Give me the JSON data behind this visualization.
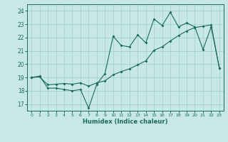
{
  "xlabel": "Humidex (Indice chaleur)",
  "background_color": "#c8e8e8",
  "line_color": "#1a6b5a",
  "grid_color": "#9ecece",
  "xlim": [
    -0.5,
    23.5
  ],
  "ylim": [
    16.5,
    24.5
  ],
  "yticks": [
    17,
    18,
    19,
    20,
    21,
    22,
    23,
    24
  ],
  "xticks": [
    0,
    1,
    2,
    3,
    4,
    5,
    6,
    7,
    8,
    9,
    10,
    11,
    12,
    13,
    14,
    15,
    16,
    17,
    18,
    19,
    20,
    21,
    22,
    23
  ],
  "line1_x": [
    0,
    1,
    2,
    3,
    4,
    5,
    6,
    7,
    8,
    9,
    10,
    11,
    12,
    13,
    14,
    15,
    16,
    17,
    18,
    19,
    20,
    21,
    22,
    23
  ],
  "line1_y": [
    19.0,
    19.1,
    18.2,
    18.2,
    18.1,
    18.0,
    18.1,
    16.7,
    18.5,
    19.3,
    22.1,
    21.4,
    21.3,
    22.2,
    21.6,
    23.4,
    22.9,
    23.9,
    22.8,
    23.1,
    22.8,
    21.1,
    22.8,
    19.7
  ],
  "line2_x": [
    0,
    1,
    2,
    3,
    4,
    5,
    6,
    7,
    8,
    9,
    10,
    11,
    12,
    13,
    14,
    15,
    16,
    17,
    18,
    19,
    20,
    21,
    22,
    23
  ],
  "line2_y": [
    19.0,
    19.05,
    18.45,
    18.5,
    18.55,
    18.5,
    18.6,
    18.35,
    18.6,
    18.75,
    19.2,
    19.45,
    19.65,
    19.95,
    20.25,
    21.05,
    21.3,
    21.75,
    22.15,
    22.5,
    22.75,
    22.85,
    22.95,
    19.7
  ]
}
